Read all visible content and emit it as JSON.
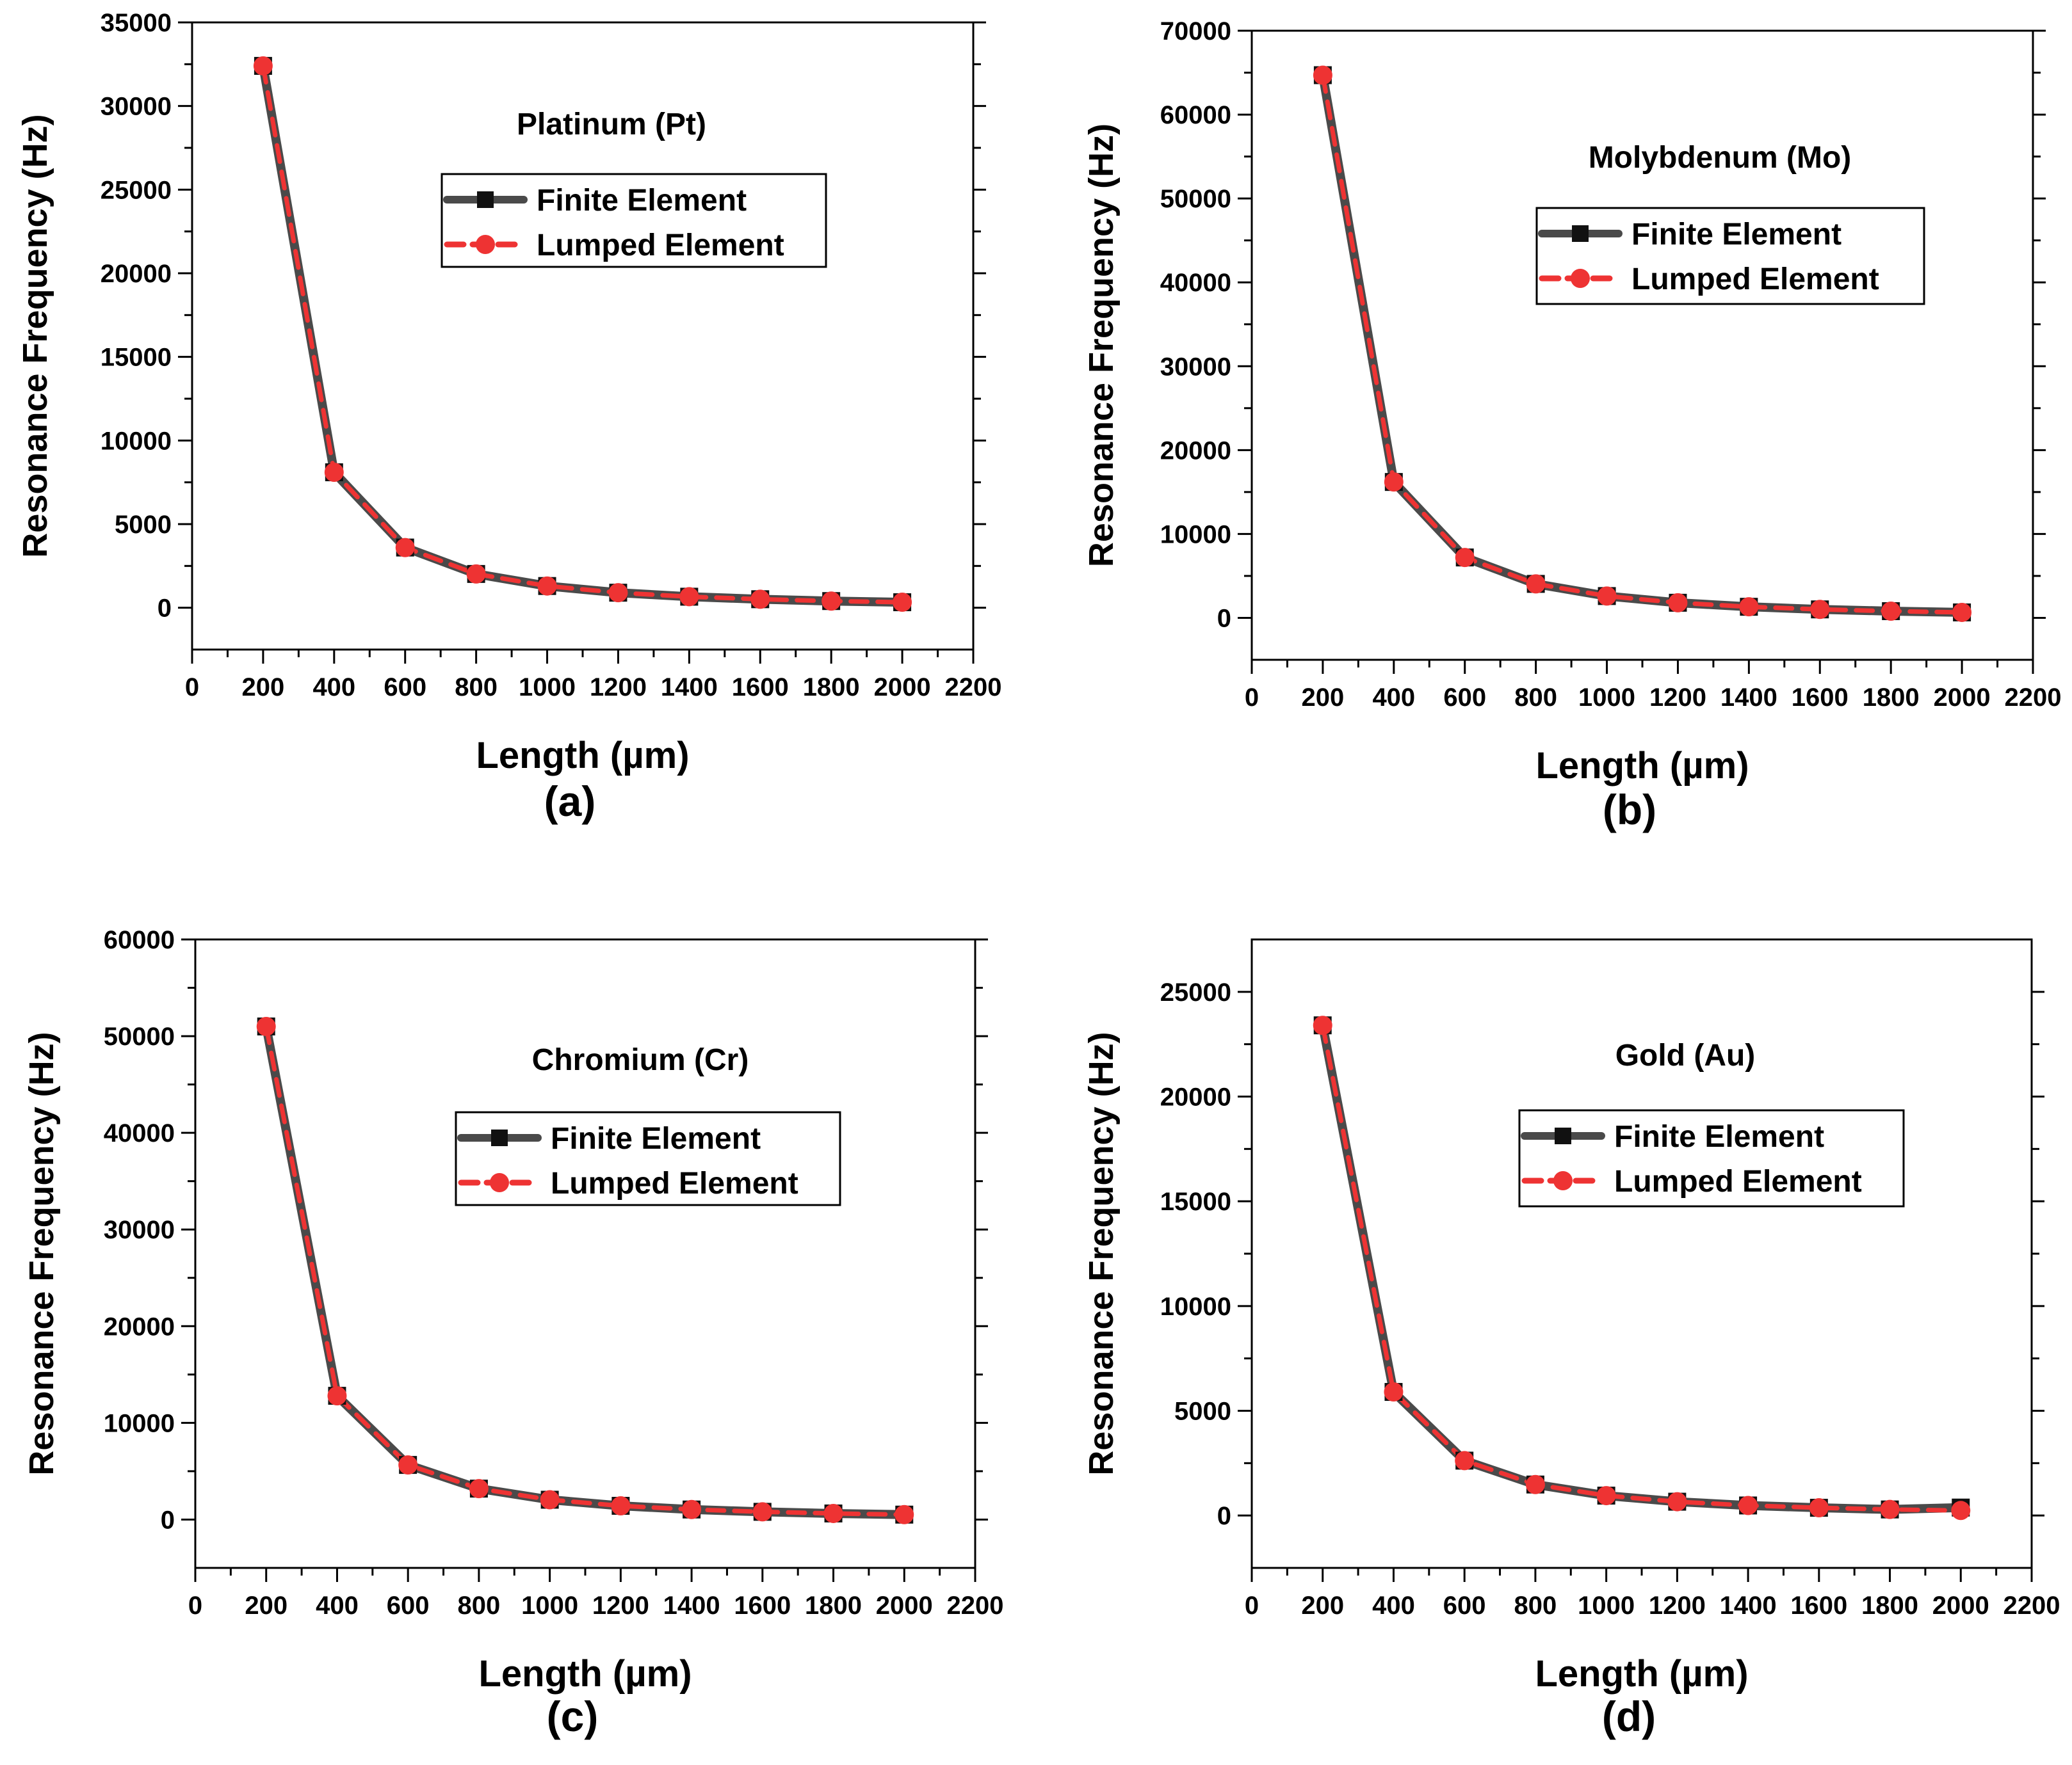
{
  "chart_data": [
    {
      "type": "line",
      "title": "Platinum (Pt)",
      "panel_label": "(a)",
      "xlabel": "Length (µm)",
      "ylabel": "Resonance Frequency (Hz)",
      "xlim": [
        0,
        2200
      ],
      "ylim": [
        -2500,
        35000
      ],
      "xticks": [
        0,
        200,
        400,
        600,
        800,
        1000,
        1200,
        1400,
        1600,
        1800,
        2000,
        2200
      ],
      "yticks": [
        0,
        5000,
        10000,
        15000,
        20000,
        25000,
        30000,
        35000
      ],
      "x": [
        200,
        400,
        600,
        800,
        1000,
        1200,
        1400,
        1600,
        1800,
        2000
      ],
      "series": [
        {
          "name": "Finite Element",
          "color": "#4a4a4a",
          "marker": "square",
          "values": [
            32400,
            8100,
            3600,
            2020,
            1300,
            900,
            660,
            510,
            400,
            330
          ]
        },
        {
          "name": "Lumped Element",
          "color": "#ee3333",
          "marker": "circle",
          "values": [
            32400,
            8100,
            3600,
            2020,
            1300,
            900,
            660,
            510,
            400,
            330
          ]
        }
      ],
      "legend_position": "upper-center"
    },
    {
      "type": "line",
      "title": "Molybdenum (Mo)",
      "panel_label": "(b)",
      "xlabel": "Length (µm)",
      "ylabel": "Resonance Frequency (Hz)",
      "xlim": [
        0,
        2200
      ],
      "ylim": [
        -5000,
        70000
      ],
      "xticks": [
        0,
        200,
        400,
        600,
        800,
        1000,
        1200,
        1400,
        1600,
        1800,
        2000,
        2200
      ],
      "yticks": [
        0,
        10000,
        20000,
        30000,
        40000,
        50000,
        60000,
        70000
      ],
      "x": [
        200,
        400,
        600,
        800,
        1000,
        1200,
        1400,
        1600,
        1800,
        2000
      ],
      "series": [
        {
          "name": "Finite Element",
          "color": "#4a4a4a",
          "marker": "square",
          "values": [
            64700,
            16200,
            7200,
            4050,
            2600,
            1800,
            1320,
            1010,
            800,
            650
          ]
        },
        {
          "name": "Lumped Element",
          "color": "#ee3333",
          "marker": "circle",
          "values": [
            64700,
            16200,
            7200,
            4050,
            2600,
            1800,
            1320,
            1010,
            800,
            650
          ]
        }
      ],
      "legend_position": "upper-center"
    },
    {
      "type": "line",
      "title": "Chromium (Cr)",
      "panel_label": "(c)",
      "xlabel": "Length (µm)",
      "ylabel": "Resonance Frequency (Hz)",
      "xlim": [
        0,
        2200
      ],
      "ylim": [
        -5000,
        60000
      ],
      "xticks": [
        0,
        200,
        400,
        600,
        800,
        1000,
        1200,
        1400,
        1600,
        1800,
        2000,
        2200
      ],
      "yticks": [
        0,
        10000,
        20000,
        30000,
        40000,
        50000,
        60000
      ],
      "x": [
        200,
        400,
        600,
        800,
        1000,
        1200,
        1400,
        1600,
        1800,
        2000
      ],
      "series": [
        {
          "name": "Finite Element",
          "color": "#4a4a4a",
          "marker": "square",
          "values": [
            51000,
            12800,
            5650,
            3200,
            2050,
            1420,
            1040,
            800,
            630,
            510
          ]
        },
        {
          "name": "Lumped Element",
          "color": "#ee3333",
          "marker": "circle",
          "values": [
            51000,
            12800,
            5650,
            3200,
            2050,
            1420,
            1040,
            800,
            630,
            510
          ]
        }
      ],
      "legend_position": "upper-center"
    },
    {
      "type": "line",
      "title": "Gold (Au)",
      "panel_label": "(d)",
      "xlabel": "Length (µm)",
      "ylabel": "Resonance Frequency (Hz)",
      "xlim": [
        0,
        2200
      ],
      "ylim": [
        -2500,
        27500
      ],
      "xticks": [
        0,
        200,
        400,
        600,
        800,
        1000,
        1200,
        1400,
        1600,
        1800,
        2000,
        2200
      ],
      "yticks": [
        0,
        5000,
        10000,
        15000,
        20000,
        25000
      ],
      "x": [
        200,
        400,
        600,
        800,
        1000,
        1200,
        1400,
        1600,
        1800,
        2000
      ],
      "series": [
        {
          "name": "Finite Element",
          "color": "#4a4a4a",
          "marker": "square",
          "values": [
            23400,
            5900,
            2620,
            1480,
            950,
            660,
            480,
            370,
            290,
            380
          ]
        },
        {
          "name": "Lumped Element",
          "color": "#ee3333",
          "marker": "circle",
          "values": [
            23400,
            5900,
            2620,
            1480,
            950,
            660,
            480,
            370,
            290,
            240
          ]
        }
      ],
      "legend_position": "upper-center"
    }
  ]
}
